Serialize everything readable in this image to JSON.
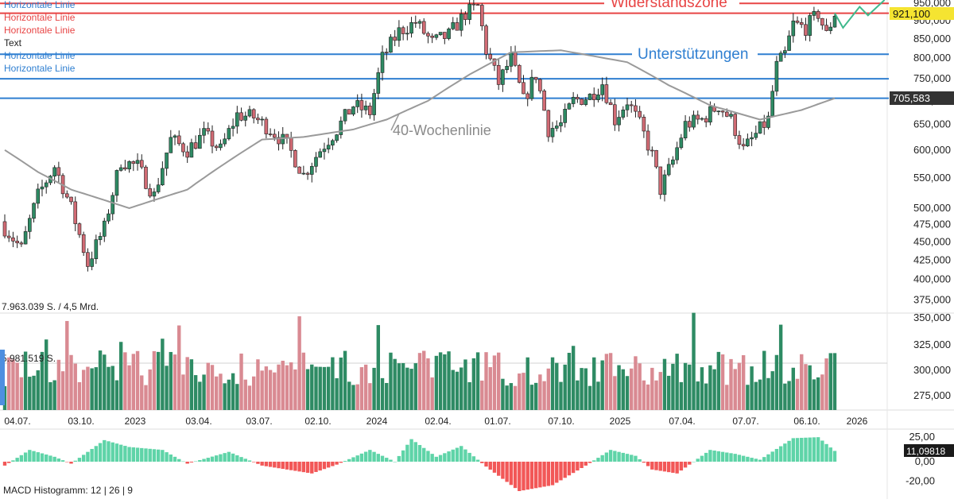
{
  "legend": {
    "items": [
      {
        "text": "Horizontale Linie",
        "color": "#2f7fd1"
      },
      {
        "text": "Horizontale Linie",
        "color": "#e84545"
      },
      {
        "text": "Horizontale Linie",
        "color": "#e84545"
      },
      {
        "text": "Text",
        "color": "#222222"
      },
      {
        "text": "Horizontale Linie",
        "color": "#2f7fd1"
      },
      {
        "text": "Horizontale Linie",
        "color": "#2f7fd1"
      }
    ]
  },
  "annotations": {
    "resistance": "Widerstandszone",
    "support": "Unterstützungen",
    "ma_label": "40-Wochenlinie"
  },
  "volume_info": {
    "total": "7.963.039 S. / 4,5 Mrd.",
    "avg": "5.981.519 S."
  },
  "macd_label": "MACD Histogramm: 12 | 26 | 9",
  "price_badges": {
    "last": "921,100",
    "ma": "705,583",
    "macd": "11,09818"
  },
  "colors": {
    "up": "#2e8b64",
    "down": "#d16b74",
    "vol_up": "#2e8b64",
    "vol_down": "#d98a92",
    "macd_pos": "#5fd4a8",
    "macd_neg": "#f25757",
    "blue_line": "#2f7fd1",
    "red_line": "#e84545",
    "ma_line": "#9a9a9a",
    "badge_yellow": "#f5e431",
    "badge_dark": "#333333"
  },
  "chart_data": {
    "type": "candlestick",
    "price_axis": {
      "scale": "log",
      "range": [
        360000,
        960000
      ],
      "ticks": [
        "950,000",
        "900,000",
        "850,000",
        "800,000",
        "750,000",
        "700,000",
        "650,000",
        "600,000",
        "550,000",
        "500,000",
        "475,000",
        "450,000",
        "425,000",
        "400,000",
        "375,000"
      ],
      "tick_values": [
        950000,
        900000,
        850000,
        800000,
        750000,
        700000,
        650000,
        600000,
        550000,
        500000,
        475000,
        450000,
        425000,
        400000,
        375000
      ]
    },
    "volume_axis": {
      "ticks": [
        "350,000",
        "325,000",
        "300,000",
        "275,000"
      ]
    },
    "macd_axis": {
      "ticks": [
        "25,00",
        "0,00",
        "-20,00"
      ],
      "tick_values": [
        25,
        0,
        -20
      ],
      "range": [
        -25,
        30
      ]
    },
    "date_labels": [
      "04.07.",
      "03.10.",
      "2023",
      "03.04.",
      "03.07.",
      "02.10.",
      "2024",
      "02.04.",
      "01.07.",
      "07.10.",
      "2025",
      "07.04.",
      "07.07.",
      "06.10.",
      "2026"
    ],
    "horizontal_lines": [
      {
        "value": 950000,
        "color": "red"
      },
      {
        "value": 921100,
        "color": "red"
      },
      {
        "value": 810000,
        "color": "blue"
      },
      {
        "value": 750000,
        "color": "blue"
      },
      {
        "value": 705583,
        "color": "blue"
      }
    ],
    "weekly_close_anchors": [
      {
        "week": 0,
        "close": 470000
      },
      {
        "week": 4,
        "close": 440000
      },
      {
        "week": 8,
        "close": 520000
      },
      {
        "week": 12,
        "close": 570000
      },
      {
        "week": 16,
        "close": 500000
      },
      {
        "week": 20,
        "close": 420000
      },
      {
        "week": 24,
        "close": 470000
      },
      {
        "week": 28,
        "close": 580000
      },
      {
        "week": 32,
        "close": 570000
      },
      {
        "week": 36,
        "close": 520000
      },
      {
        "week": 40,
        "close": 620000
      },
      {
        "week": 44,
        "close": 600000
      },
      {
        "week": 48,
        "close": 630000
      },
      {
        "week": 52,
        "close": 600000
      },
      {
        "week": 56,
        "close": 670000
      },
      {
        "week": 60,
        "close": 665000
      },
      {
        "week": 64,
        "close": 640000
      },
      {
        "week": 68,
        "close": 610000
      },
      {
        "week": 72,
        "close": 555000
      },
      {
        "week": 76,
        "close": 600000
      },
      {
        "week": 80,
        "close": 640000
      },
      {
        "week": 84,
        "close": 690000
      },
      {
        "week": 88,
        "close": 675000
      },
      {
        "week": 91,
        "close": 800000
      },
      {
        "week": 95,
        "close": 870000
      },
      {
        "week": 99,
        "close": 895000
      },
      {
        "week": 103,
        "close": 840000
      },
      {
        "week": 107,
        "close": 860000
      },
      {
        "week": 111,
        "close": 920000
      },
      {
        "week": 114,
        "close": 940000
      },
      {
        "week": 116,
        "close": 820000
      },
      {
        "week": 119,
        "close": 740000
      },
      {
        "week": 122,
        "close": 800000
      },
      {
        "week": 125,
        "close": 700000
      },
      {
        "week": 128,
        "close": 760000
      },
      {
        "week": 131,
        "close": 640000
      },
      {
        "week": 134,
        "close": 650000
      },
      {
        "week": 137,
        "close": 700000
      },
      {
        "week": 141,
        "close": 710000
      },
      {
        "week": 144,
        "close": 740000
      },
      {
        "week": 147,
        "close": 660000
      },
      {
        "week": 150,
        "close": 700000
      },
      {
        "week": 153,
        "close": 650000
      },
      {
        "week": 156,
        "close": 590000
      },
      {
        "week": 158,
        "close": 530000
      },
      {
        "week": 161,
        "close": 580000
      },
      {
        "week": 164,
        "close": 650000
      },
      {
        "week": 168,
        "close": 660000
      },
      {
        "week": 172,
        "close": 690000
      },
      {
        "week": 175,
        "close": 660000
      },
      {
        "week": 178,
        "close": 600000
      },
      {
        "week": 181,
        "close": 630000
      },
      {
        "week": 184,
        "close": 660000
      },
      {
        "week": 186,
        "close": 780000
      },
      {
        "week": 188,
        "close": 810000
      },
      {
        "week": 190,
        "close": 890000
      },
      {
        "week": 193,
        "close": 880000
      },
      {
        "week": 196,
        "close": 920000
      },
      {
        "week": 198,
        "close": 860000
      },
      {
        "week": 200,
        "close": 921100
      }
    ],
    "ma40_anchors": [
      {
        "week": 0,
        "value": 600000
      },
      {
        "week": 8,
        "value": 560000
      },
      {
        "week": 16,
        "value": 530000
      },
      {
        "week": 30,
        "value": 500000
      },
      {
        "week": 44,
        "value": 530000
      },
      {
        "week": 54,
        "value": 580000
      },
      {
        "week": 62,
        "value": 620000
      },
      {
        "week": 72,
        "value": 625000
      },
      {
        "week": 84,
        "value": 640000
      },
      {
        "week": 92,
        "value": 660000
      },
      {
        "week": 102,
        "value": 700000
      },
      {
        "week": 112,
        "value": 760000
      },
      {
        "week": 122,
        "value": 815000
      },
      {
        "week": 134,
        "value": 820000
      },
      {
        "week": 150,
        "value": 790000
      },
      {
        "week": 160,
        "value": 735000
      },
      {
        "week": 170,
        "value": 690000
      },
      {
        "week": 182,
        "value": 660000
      },
      {
        "week": 192,
        "value": 680000
      },
      {
        "week": 200,
        "value": 705583
      }
    ],
    "projection": [
      {
        "week": 200,
        "value": 921100
      },
      {
        "week": 202,
        "value": 880000
      },
      {
        "week": 206,
        "value": 940000
      },
      {
        "week": 208,
        "value": 915000
      },
      {
        "week": 212,
        "value": 960000
      }
    ],
    "macd_anchors": [
      {
        "week": 0,
        "value": -4
      },
      {
        "week": 6,
        "value": 12
      },
      {
        "week": 12,
        "value": 5
      },
      {
        "week": 16,
        "value": -2
      },
      {
        "week": 24,
        "value": 22
      },
      {
        "week": 30,
        "value": 15
      },
      {
        "week": 38,
        "value": 12
      },
      {
        "week": 44,
        "value": -2
      },
      {
        "week": 54,
        "value": 10
      },
      {
        "week": 62,
        "value": -4
      },
      {
        "week": 74,
        "value": -12
      },
      {
        "week": 80,
        "value": -3
      },
      {
        "week": 88,
        "value": 12
      },
      {
        "week": 94,
        "value": 0
      },
      {
        "week": 98,
        "value": 23
      },
      {
        "week": 104,
        "value": 5
      },
      {
        "week": 110,
        "value": 16
      },
      {
        "week": 116,
        "value": -5
      },
      {
        "week": 124,
        "value": -30
      },
      {
        "week": 132,
        "value": -24
      },
      {
        "week": 140,
        "value": -4
      },
      {
        "week": 146,
        "value": 12
      },
      {
        "week": 152,
        "value": 6
      },
      {
        "week": 156,
        "value": -8
      },
      {
        "week": 162,
        "value": -12
      },
      {
        "week": 170,
        "value": 12
      },
      {
        "week": 176,
        "value": 8
      },
      {
        "week": 182,
        "value": 2
      },
      {
        "week": 190,
        "value": 24
      },
      {
        "week": 196,
        "value": 25
      },
      {
        "week": 200,
        "value": 11
      }
    ]
  }
}
